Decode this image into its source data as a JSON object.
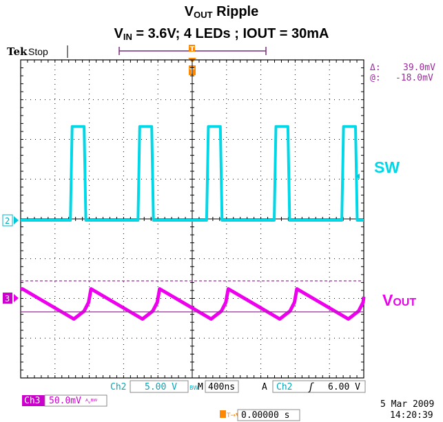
{
  "title": {
    "line1_prefix": "V",
    "line1_sub": "OUT",
    "line1_suffix": " Ripple",
    "line2_prefix": "V",
    "line2_sub": "IN",
    "line2_suffix": " = 3.6V; 4 LEDs ; IOUT = 30mA"
  },
  "header": {
    "brand": "Tek",
    "status": "Stop"
  },
  "cursor_readout": {
    "delta_label": "Δ:",
    "delta_value": "39.0mV",
    "at_label": "@:",
    "at_value": "-18.0mV"
  },
  "trace_labels": {
    "sw": "SW",
    "vout_prefix": "V",
    "vout_sub": "OUT"
  },
  "channel_markers": {
    "ch2": "2",
    "ch3": "3"
  },
  "bottom_bar": {
    "ch2_label": "Ch2",
    "ch2_scale": "5.00 V",
    "bw_icon": "BW",
    "timebase_label": "M",
    "timebase": "400ns",
    "trigger_mode": "A",
    "trigger_source": "Ch2",
    "trigger_slope": "ʃ",
    "trigger_level": "6.00 V",
    "ch3_label": "Ch3",
    "ch3_scale": "50.0mV",
    "ch3_suffix": "ᴬᵥᴮᵂ",
    "trigger_pos_icon": "T→▼",
    "trigger_pos": "0.00000 s",
    "date": "5 Mar 2009",
    "time": "14:20:39"
  },
  "colors": {
    "sw": "#00d8e8",
    "vout": "#ee00ee",
    "cursor": "#9a2a9a",
    "trigger": "#ff8800",
    "bar": "#2222aa"
  },
  "chart_data": {
    "type": "line",
    "x_unit": "s",
    "time_per_div": "400ns",
    "x_divisions": 10,
    "y_divisions": 8,
    "grid": true,
    "series": [
      {
        "name": "SW",
        "volts_per_div": "5.00 V",
        "x_div": [
          0,
          1.45,
          1.5,
          1.85,
          1.9,
          3.42,
          3.47,
          3.82,
          3.87,
          5.42,
          5.47,
          5.82,
          5.87,
          7.39,
          7.44,
          7.79,
          7.84,
          9.36,
          9.41,
          9.76,
          9.81,
          10
        ],
        "values": [
          0,
          0,
          11.8,
          11.8,
          0,
          0,
          11.8,
          11.8,
          0,
          0,
          11.8,
          11.8,
          0,
          0,
          11.8,
          11.8,
          0,
          0,
          11.8,
          11.8,
          0,
          0
        ]
      },
      {
        "name": "VOUT",
        "volts_per_div": "50.0mV",
        "x_div": [
          0,
          0.05,
          1.55,
          1.85,
          1.98,
          2.05,
          3.55,
          3.85,
          3.98,
          4.05,
          5.55,
          5.85,
          5.98,
          6.05,
          7.55,
          7.85,
          7.98,
          8.05,
          9.55,
          9.85,
          9.98,
          10
        ],
        "values": [
          -10,
          -10,
          -48,
          -38,
          -27,
          -10,
          -48,
          -38,
          -27,
          -10,
          -48,
          -38,
          -27,
          -10,
          -48,
          -38,
          -27,
          -10,
          -48,
          -38,
          -27,
          -20
        ]
      }
    ],
    "cursors": {
      "delta": "39.0mV",
      "at": "-18.0mV"
    }
  }
}
